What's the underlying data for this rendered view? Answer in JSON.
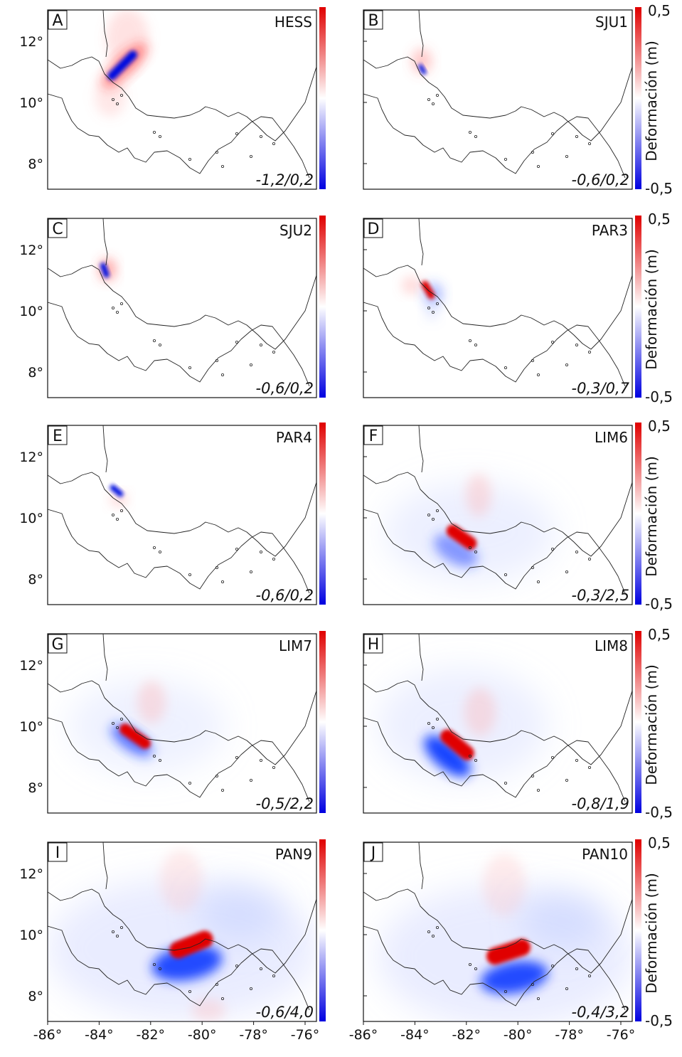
{
  "colorbar": {
    "top_label": "0,5",
    "bottom_label": "-0,5",
    "axis_label": "Deformación (m)",
    "high_color": "#e00000",
    "mid_color": "#ffffff",
    "low_color": "#0000e0"
  },
  "lat_ticks": [
    "12°",
    "10°",
    "8°"
  ],
  "lon_ticks": [
    "-86°",
    "-84°",
    "-82°",
    "-80°",
    "-78°",
    "-76°"
  ],
  "panels": [
    {
      "letter": "A",
      "name": "HESS",
      "range": "-1,2/0,2",
      "show_colorbar_labels": false
    },
    {
      "letter": "B",
      "name": "SJU1",
      "range": "-0,6/0,2",
      "show_colorbar_labels": true
    },
    {
      "letter": "C",
      "name": "SJU2",
      "range": "-0,6/0,2",
      "show_colorbar_labels": false
    },
    {
      "letter": "D",
      "name": "PAR3",
      "range": "-0,3/0,7",
      "show_colorbar_labels": true
    },
    {
      "letter": "E",
      "name": "PAR4",
      "range": "-0,6/0,2",
      "show_colorbar_labels": false
    },
    {
      "letter": "F",
      "name": "LIM6",
      "range": "-0,3/2,5",
      "show_colorbar_labels": true
    },
    {
      "letter": "G",
      "name": "LIM7",
      "range": "-0,5/2,2",
      "show_colorbar_labels": false
    },
    {
      "letter": "H",
      "name": "LIM8",
      "range": "-0,8/1,9",
      "show_colorbar_labels": true
    },
    {
      "letter": "I",
      "name": "PAN9",
      "range": "-0,6/4,0",
      "show_colorbar_labels": false
    },
    {
      "letter": "J",
      "name": "PAN10",
      "range": "-0,4/3,2",
      "show_colorbar_labels": true
    }
  ]
}
